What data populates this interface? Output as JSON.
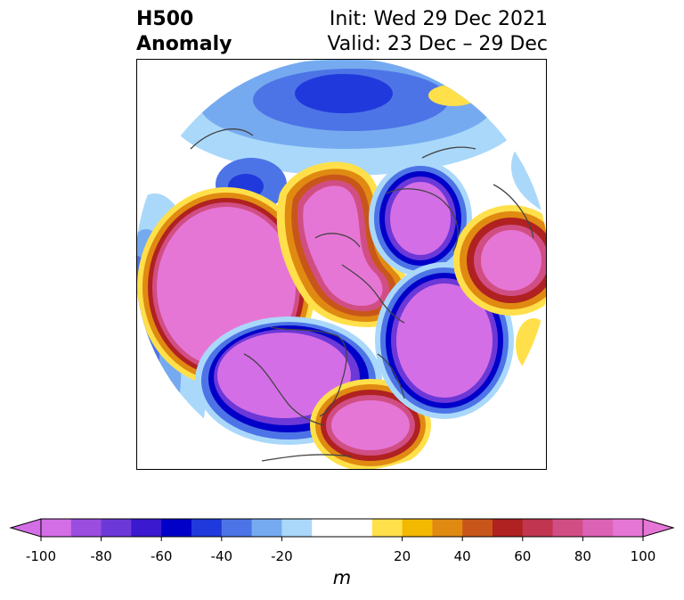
{
  "title": {
    "left_line1": "H500",
    "left_line2": "Anomaly",
    "right_line1": "Init: Wed 29 Dec 2021",
    "right_line2": "Valid: 23 Dec – 29 Dec"
  },
  "map": {
    "projection": "north-polar-stereographic",
    "field": "500 hPa geopotential height anomaly",
    "features": [
      {
        "name": "positive-anomaly-north-pacific",
        "sign": "positive"
      },
      {
        "name": "negative-anomaly-western-north-america",
        "sign": "negative"
      },
      {
        "name": "positive-anomaly-eastern-north-america",
        "sign": "positive"
      },
      {
        "name": "positive-anomaly-arctic-greenland",
        "sign": "positive"
      },
      {
        "name": "negative-anomaly-europe",
        "sign": "negative"
      },
      {
        "name": "positive-anomaly-east-asia",
        "sign": "positive"
      },
      {
        "name": "negative-anomaly-north-atlantic",
        "sign": "negative"
      },
      {
        "name": "negative-anomaly-south-asia",
        "sign": "negative"
      }
    ]
  },
  "colorbar": {
    "unit": "m",
    "ticks": [
      "-100",
      "-80",
      "-60",
      "-40",
      "-20",
      "20",
      "40",
      "60",
      "80",
      "100"
    ],
    "tick_values": [
      -100,
      -80,
      -60,
      -40,
      -20,
      20,
      40,
      60,
      80,
      100
    ],
    "levels": [
      -100,
      -90,
      -80,
      -70,
      -60,
      -50,
      -40,
      -30,
      -20,
      -10,
      10,
      20,
      30,
      40,
      50,
      60,
      70,
      80,
      90,
      100
    ],
    "colors": [
      "#d46ee6",
      "#9b4de0",
      "#6c38d8",
      "#3a19cf",
      "#0000c8",
      "#2039dc",
      "#4d74e6",
      "#76aaf0",
      "#aad8fa",
      "#ffffff",
      "#ffe04a",
      "#f3b800",
      "#e08a12",
      "#c8561a",
      "#b02121",
      "#c13551",
      "#d14e84",
      "#dc62b6",
      "#e676d6"
    ],
    "under_color": "#d46ee6",
    "over_color": "#e676d6"
  }
}
